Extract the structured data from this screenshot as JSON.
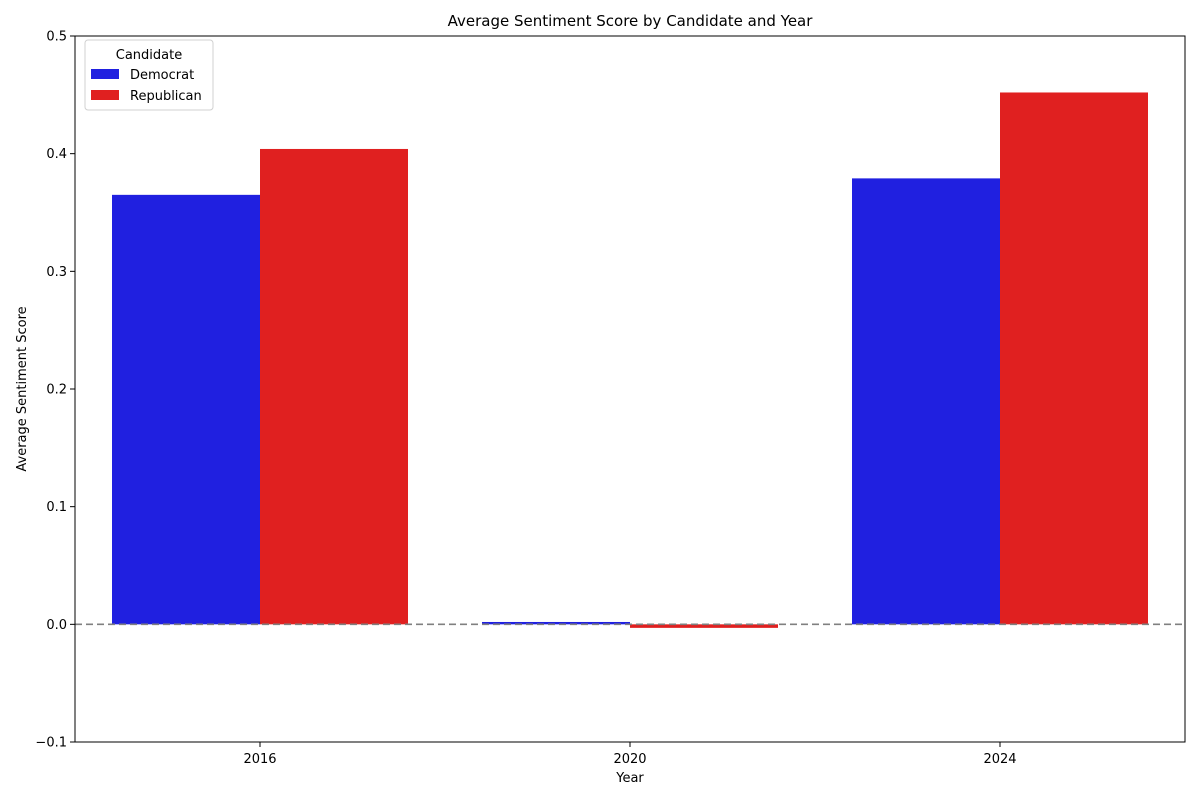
{
  "chart_data": {
    "type": "bar",
    "title": "Average Sentiment Score by Candidate and Year",
    "xlabel": "Year",
    "ylabel": "Average Sentiment Score",
    "categories": [
      "2016",
      "2020",
      "2024"
    ],
    "series": [
      {
        "name": "Democrat",
        "color": "#2020e0",
        "values": [
          0.365,
          0.002,
          0.379
        ]
      },
      {
        "name": "Republican",
        "color": "#e02020",
        "values": [
          0.404,
          -0.003,
          0.452
        ]
      }
    ],
    "ylim": [
      -0.1,
      0.5
    ],
    "yticks": [
      -0.1,
      0.0,
      0.1,
      0.2,
      0.3,
      0.4,
      0.5
    ],
    "ytick_labels": [
      "−0.1",
      "0.0",
      "0.1",
      "0.2",
      "0.3",
      "0.4",
      "0.5"
    ],
    "reference_line": {
      "y": 0,
      "style": "dashed",
      "color": "#808080"
    },
    "legend": {
      "title": "Candidate",
      "position": "top-left"
    },
    "grid": false
  }
}
